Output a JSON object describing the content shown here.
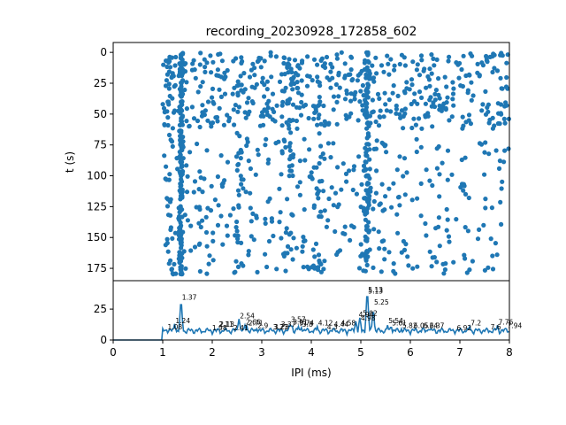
{
  "chart_data": [
    {
      "type": "scatter",
      "title": "recording_20230928_172858_602",
      "xlabel": "",
      "ylabel": "t (s)",
      "xlim": [
        0,
        8
      ],
      "ylim": [
        185,
        -8
      ],
      "y_inverted": true,
      "yticks": [
        0,
        25,
        50,
        75,
        100,
        125,
        150,
        175
      ],
      "color": "#1f77b4",
      "clusters": [
        {
          "x": 1.37,
          "t_from": 0,
          "t_to": 180,
          "n": 160,
          "spread": 0.07
        },
        {
          "x": 1.13,
          "t_from": 0,
          "t_to": 180,
          "n": 35,
          "spread": 0.12
        },
        {
          "x": 5.13,
          "t_from": 0,
          "t_to": 180,
          "n": 110,
          "spread": 0.1
        },
        {
          "x": 2.54,
          "t_from": 0,
          "t_to": 180,
          "n": 30,
          "spread": 0.15
        },
        {
          "x": 3.57,
          "t_from": 0,
          "t_to": 180,
          "n": 35,
          "spread": 0.2
        },
        {
          "x": 4.12,
          "t_from": 0,
          "t_to": 180,
          "n": 35,
          "spread": 0.2
        }
      ],
      "background_points": 900,
      "background_x_range": [
        1.0,
        8.0
      ],
      "dense_t_band": [
        0,
        60
      ],
      "gap_t_band": [
        62,
        70
      ]
    },
    {
      "type": "line",
      "title": "",
      "xlabel": "IPI (ms)",
      "ylabel": "",
      "xlim": [
        0,
        8
      ],
      "ylim": [
        0,
        48
      ],
      "xticks": [
        0,
        1,
        2,
        3,
        4,
        5,
        6,
        7,
        8
      ],
      "yticks": [
        0,
        25
      ],
      "color": "#1f77b4",
      "x_step": 0.02,
      "peaks": [
        {
          "x": 1.08,
          "y": 8
        },
        {
          "x": 1.24,
          "y": 13
        },
        {
          "x": 1.37,
          "y": 31
        },
        {
          "x": 2.11,
          "y": 9
        },
        {
          "x": 2.13,
          "y": 9
        },
        {
          "x": 2.54,
          "y": 17
        },
        {
          "x": 2.66,
          "y": 12
        },
        {
          "x": 2.7,
          "y": 11
        },
        {
          "x": 2.9,
          "y": 9
        },
        {
          "x": 3.21,
          "y": 8
        },
        {
          "x": 3.23,
          "y": 8
        },
        {
          "x": 3.57,
          "y": 13
        },
        {
          "x": 3.61,
          "y": 12
        },
        {
          "x": 3.74,
          "y": 11
        },
        {
          "x": 3.8,
          "y": 10
        },
        {
          "x": 4.12,
          "y": 11
        },
        {
          "x": 4.3,
          "y": 9
        },
        {
          "x": 4.9,
          "y": 15
        },
        {
          "x": 4.98,
          "y": 18
        },
        {
          "x": 5.13,
          "y": 38
        },
        {
          "x": 5.25,
          "y": 24
        },
        {
          "x": 5.54,
          "y": 12
        },
        {
          "x": 5.61,
          "y": 11
        },
        {
          "x": 5.82,
          "y": 9
        },
        {
          "x": 6.24,
          "y": 9
        },
        {
          "x": 6.37,
          "y": 9
        },
        {
          "x": 6.92,
          "y": 7
        },
        {
          "x": 7.2,
          "y": 11
        },
        {
          "x": 7.76,
          "y": 12
        },
        {
          "x": 7.94,
          "y": 9
        }
      ],
      "peak_labels": [
        {
          "x": 1.37,
          "y": 32,
          "text": "1.37"
        },
        {
          "x": 1.24,
          "y": 13,
          "text": "1.24"
        },
        {
          "x": 1.08,
          "y": 8,
          "text": "1.08"
        },
        {
          "x": 2.13,
          "y": 10,
          "text": "2.13"
        },
        {
          "x": 2.11,
          "y": 10,
          "text": "2.11"
        },
        {
          "x": 1.98,
          "y": 7,
          "text": "1.98"
        },
        {
          "x": 2.54,
          "y": 17,
          "text": "2.54"
        },
        {
          "x": 2.66,
          "y": 12,
          "text": "2.66"
        },
        {
          "x": 2.71,
          "y": 11,
          "text": "2.71"
        },
        {
          "x": 2.41,
          "y": 7,
          "text": "2.41"
        },
        {
          "x": 2.9,
          "y": 9,
          "text": "2.9"
        },
        {
          "x": 3.21,
          "y": 8,
          "text": "3.21"
        },
        {
          "x": 3.23,
          "y": 8,
          "text": "3.23"
        },
        {
          "x": 3.37,
          "y": 10,
          "text": "3.37"
        },
        {
          "x": 3.57,
          "y": 14,
          "text": "3.57"
        },
        {
          "x": 3.61,
          "y": 12,
          "text": "3.61"
        },
        {
          "x": 3.74,
          "y": 11,
          "text": "3.74"
        },
        {
          "x": 3.8,
          "y": 10,
          "text": "3.8"
        },
        {
          "x": 4.12,
          "y": 11,
          "text": "4.12"
        },
        {
          "x": 4.3,
          "y": 8,
          "text": "4.3"
        },
        {
          "x": 4.44,
          "y": 10,
          "text": "4.44"
        },
        {
          "x": 4.58,
          "y": 11,
          "text": "4.58"
        },
        {
          "x": 4.94,
          "y": 18,
          "text": "4.94"
        },
        {
          "x": 5.02,
          "y": 19,
          "text": "5.02"
        },
        {
          "x": 4.98,
          "y": 15,
          "text": "4.98"
        },
        {
          "x": 5.13,
          "y": 38,
          "text": "5.13"
        },
        {
          "x": 5.13,
          "y": 37,
          "text": "5.13"
        },
        {
          "x": 5.25,
          "y": 28,
          "text": "5.25"
        },
        {
          "x": 5.54,
          "y": 13,
          "text": "5.54"
        },
        {
          "x": 5.61,
          "y": 11,
          "text": "5.61"
        },
        {
          "x": 5.82,
          "y": 9,
          "text": "5.82"
        },
        {
          "x": 6.05,
          "y": 9,
          "text": "6.05"
        },
        {
          "x": 6.24,
          "y": 9,
          "text": "6.24"
        },
        {
          "x": 6.37,
          "y": 9,
          "text": "6.37"
        },
        {
          "x": 6.92,
          "y": 7,
          "text": "6.92"
        },
        {
          "x": 7.2,
          "y": 11,
          "text": "7.2"
        },
        {
          "x": 7.6,
          "y": 8,
          "text": "7.6"
        },
        {
          "x": 7.76,
          "y": 12,
          "text": "7.76"
        },
        {
          "x": 7.94,
          "y": 9,
          "text": "7.94"
        }
      ]
    }
  ]
}
